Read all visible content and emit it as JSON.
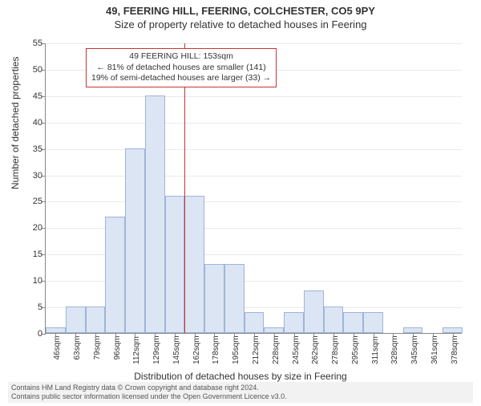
{
  "title_main": "49, FEERING HILL, FEERING, COLCHESTER, CO5 9PY",
  "title_sub": "Size of property relative to detached houses in Feering",
  "yaxis": {
    "label": "Number of detached properties",
    "min": 0,
    "max": 55,
    "ticks": [
      0,
      5,
      10,
      15,
      20,
      25,
      30,
      35,
      40,
      45,
      50,
      55
    ]
  },
  "xaxis": {
    "label": "Distribution of detached houses by size in Feering",
    "tick_labels": [
      "46sqm",
      "63sqm",
      "79sqm",
      "96sqm",
      "112sqm",
      "129sqm",
      "145sqm",
      "162sqm",
      "178sqm",
      "195sqm",
      "212sqm",
      "228sqm",
      "245sqm",
      "262sqm",
      "278sqm",
      "295sqm",
      "311sqm",
      "328sqm",
      "345sqm",
      "361sqm",
      "378sqm"
    ]
  },
  "histogram": {
    "type": "histogram",
    "bar_fill": "#dbe5f4",
    "bar_stroke": "#9fb4d8",
    "grid_color": "#eaeaea",
    "values": [
      1,
      5,
      5,
      22,
      35,
      45,
      26,
      26,
      13,
      13,
      4,
      1,
      4,
      8,
      5,
      4,
      4,
      0,
      1,
      0,
      1
    ],
    "ref_line": {
      "at_index": 7,
      "color": "#cc3333"
    },
    "callout": {
      "line1": "49 FEERING HILL: 153sqm",
      "line2": "← 81% of detached houses are smaller (141)",
      "line3": "19% of semi-detached houses are larger (33) →",
      "border_color": "#cc3333"
    }
  },
  "footer": {
    "line1": "Contains HM Land Registry data © Crown copyright and database right 2024.",
    "line2": "Contains public sector information licensed under the Open Government Licence v3.0."
  },
  "style": {
    "bg": "#ffffff",
    "text_color": "#333333",
    "axis_color": "#888888",
    "title_fontsize": 13,
    "tick_fontsize": 11,
    "footer_bg": "#f2f2f2"
  }
}
